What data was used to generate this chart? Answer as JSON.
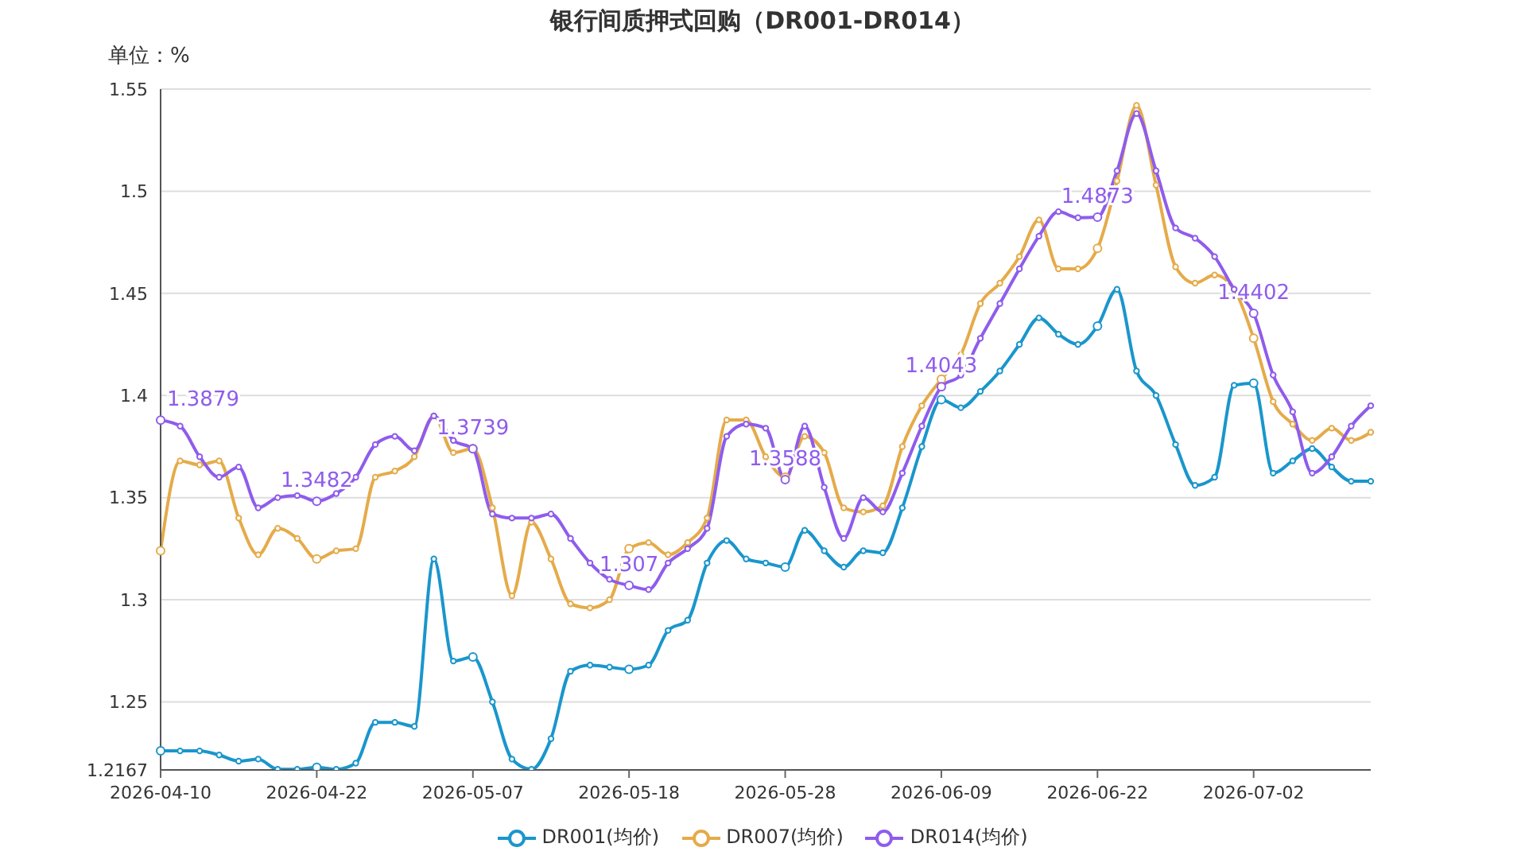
{
  "chart_data": {
    "type": "line",
    "title": "银行间质押式回购（DR001-DR014）",
    "ylabel": "单位：%",
    "categories": [
      "2026-04-10",
      null,
      null,
      null,
      null,
      null,
      null,
      null,
      "2026-04-22",
      null,
      null,
      null,
      null,
      null,
      null,
      null,
      "2026-05-07",
      null,
      null,
      null,
      null,
      null,
      null,
      null,
      "2026-05-18",
      null,
      null,
      null,
      null,
      null,
      null,
      null,
      "2026-05-28",
      null,
      null,
      null,
      null,
      null,
      null,
      null,
      "2026-06-09",
      null,
      null,
      null,
      null,
      null,
      null,
      null,
      "2026-06-22",
      null,
      null,
      null,
      null,
      null,
      null,
      null,
      "2026-07-02",
      null,
      null,
      null,
      null,
      null,
      null
    ],
    "series": [
      {
        "name": "DR001(均价)",
        "color": "#1a96cc",
        "values": [
          1.226,
          1.226,
          1.226,
          1.224,
          1.221,
          1.222,
          1.217,
          1.217,
          1.218,
          1.217,
          1.22,
          1.24,
          1.24,
          1.238,
          1.32,
          1.27,
          1.272,
          1.25,
          1.222,
          1.217,
          1.232,
          1.265,
          1.268,
          1.267,
          1.266,
          1.268,
          1.285,
          1.29,
          1.318,
          1.329,
          1.32,
          1.318,
          1.316,
          1.334,
          1.324,
          1.316,
          1.324,
          1.323,
          1.345,
          1.375,
          1.398,
          1.394,
          1.402,
          1.412,
          1.425,
          1.438,
          1.43,
          1.425,
          1.434,
          1.452,
          1.412,
          1.4,
          1.376,
          1.356,
          1.36,
          1.405,
          1.406,
          1.362,
          1.368,
          1.374,
          1.365,
          1.358,
          1.358
        ]
      },
      {
        "name": "DR007(均价)",
        "color": "#e5ab4a",
        "values": [
          1.324,
          1.368,
          1.366,
          1.368,
          1.34,
          1.322,
          1.335,
          1.33,
          1.32,
          1.324,
          1.325,
          1.36,
          1.363,
          1.37,
          1.39,
          1.372,
          1.374,
          1.345,
          1.302,
          1.338,
          1.32,
          1.298,
          1.296,
          1.3,
          1.325,
          1.328,
          1.322,
          1.328,
          1.34,
          1.388,
          1.388,
          1.37,
          1.36,
          1.38,
          1.372,
          1.345,
          1.343,
          1.346,
          1.375,
          1.395,
          1.408,
          1.42,
          1.445,
          1.455,
          1.468,
          1.486,
          1.462,
          1.462,
          1.472,
          1.505,
          1.542,
          1.503,
          1.463,
          1.455,
          1.459,
          1.452,
          1.428,
          1.397,
          1.386,
          1.378,
          1.384,
          1.378,
          1.382
        ]
      },
      {
        "name": "DR014(均价)",
        "color": "#8f5cec",
        "values": [
          1.3879,
          1.385,
          1.37,
          1.36,
          1.365,
          1.345,
          1.35,
          1.351,
          1.3482,
          1.352,
          1.36,
          1.376,
          1.38,
          1.373,
          1.39,
          1.378,
          1.3739,
          1.342,
          1.34,
          1.34,
          1.342,
          1.33,
          1.318,
          1.31,
          1.307,
          1.305,
          1.318,
          1.325,
          1.335,
          1.38,
          1.386,
          1.384,
          1.3588,
          1.385,
          1.355,
          1.33,
          1.35,
          1.343,
          1.362,
          1.385,
          1.4043,
          1.41,
          1.428,
          1.445,
          1.462,
          1.478,
          1.49,
          1.487,
          1.4873,
          1.51,
          1.538,
          1.51,
          1.482,
          1.477,
          1.468,
          1.452,
          1.4402,
          1.41,
          1.392,
          1.362,
          1.37,
          1.385,
          1.395
        ],
        "value_labels": [
          "1.3879",
          null,
          null,
          null,
          null,
          null,
          null,
          null,
          "1.3482",
          null,
          null,
          null,
          null,
          null,
          null,
          null,
          "1.3739",
          null,
          null,
          null,
          null,
          null,
          null,
          null,
          "1.307",
          null,
          null,
          null,
          null,
          null,
          null,
          null,
          "1.3588",
          null,
          null,
          null,
          null,
          null,
          null,
          null,
          "1.4043",
          null,
          null,
          null,
          null,
          null,
          null,
          null,
          "1.4873",
          null,
          null,
          null,
          null,
          null,
          null,
          null,
          "1.4402",
          null,
          null,
          null,
          null,
          null,
          null
        ]
      }
    ],
    "ylim": [
      1.2167,
      1.55
    ],
    "yticks": [
      1.2167,
      1.25,
      1.3,
      1.35,
      1.4,
      1.45,
      1.5,
      1.55
    ],
    "grid": "y",
    "legend": "bottom",
    "marker": "circle",
    "line_style": "solid"
  }
}
